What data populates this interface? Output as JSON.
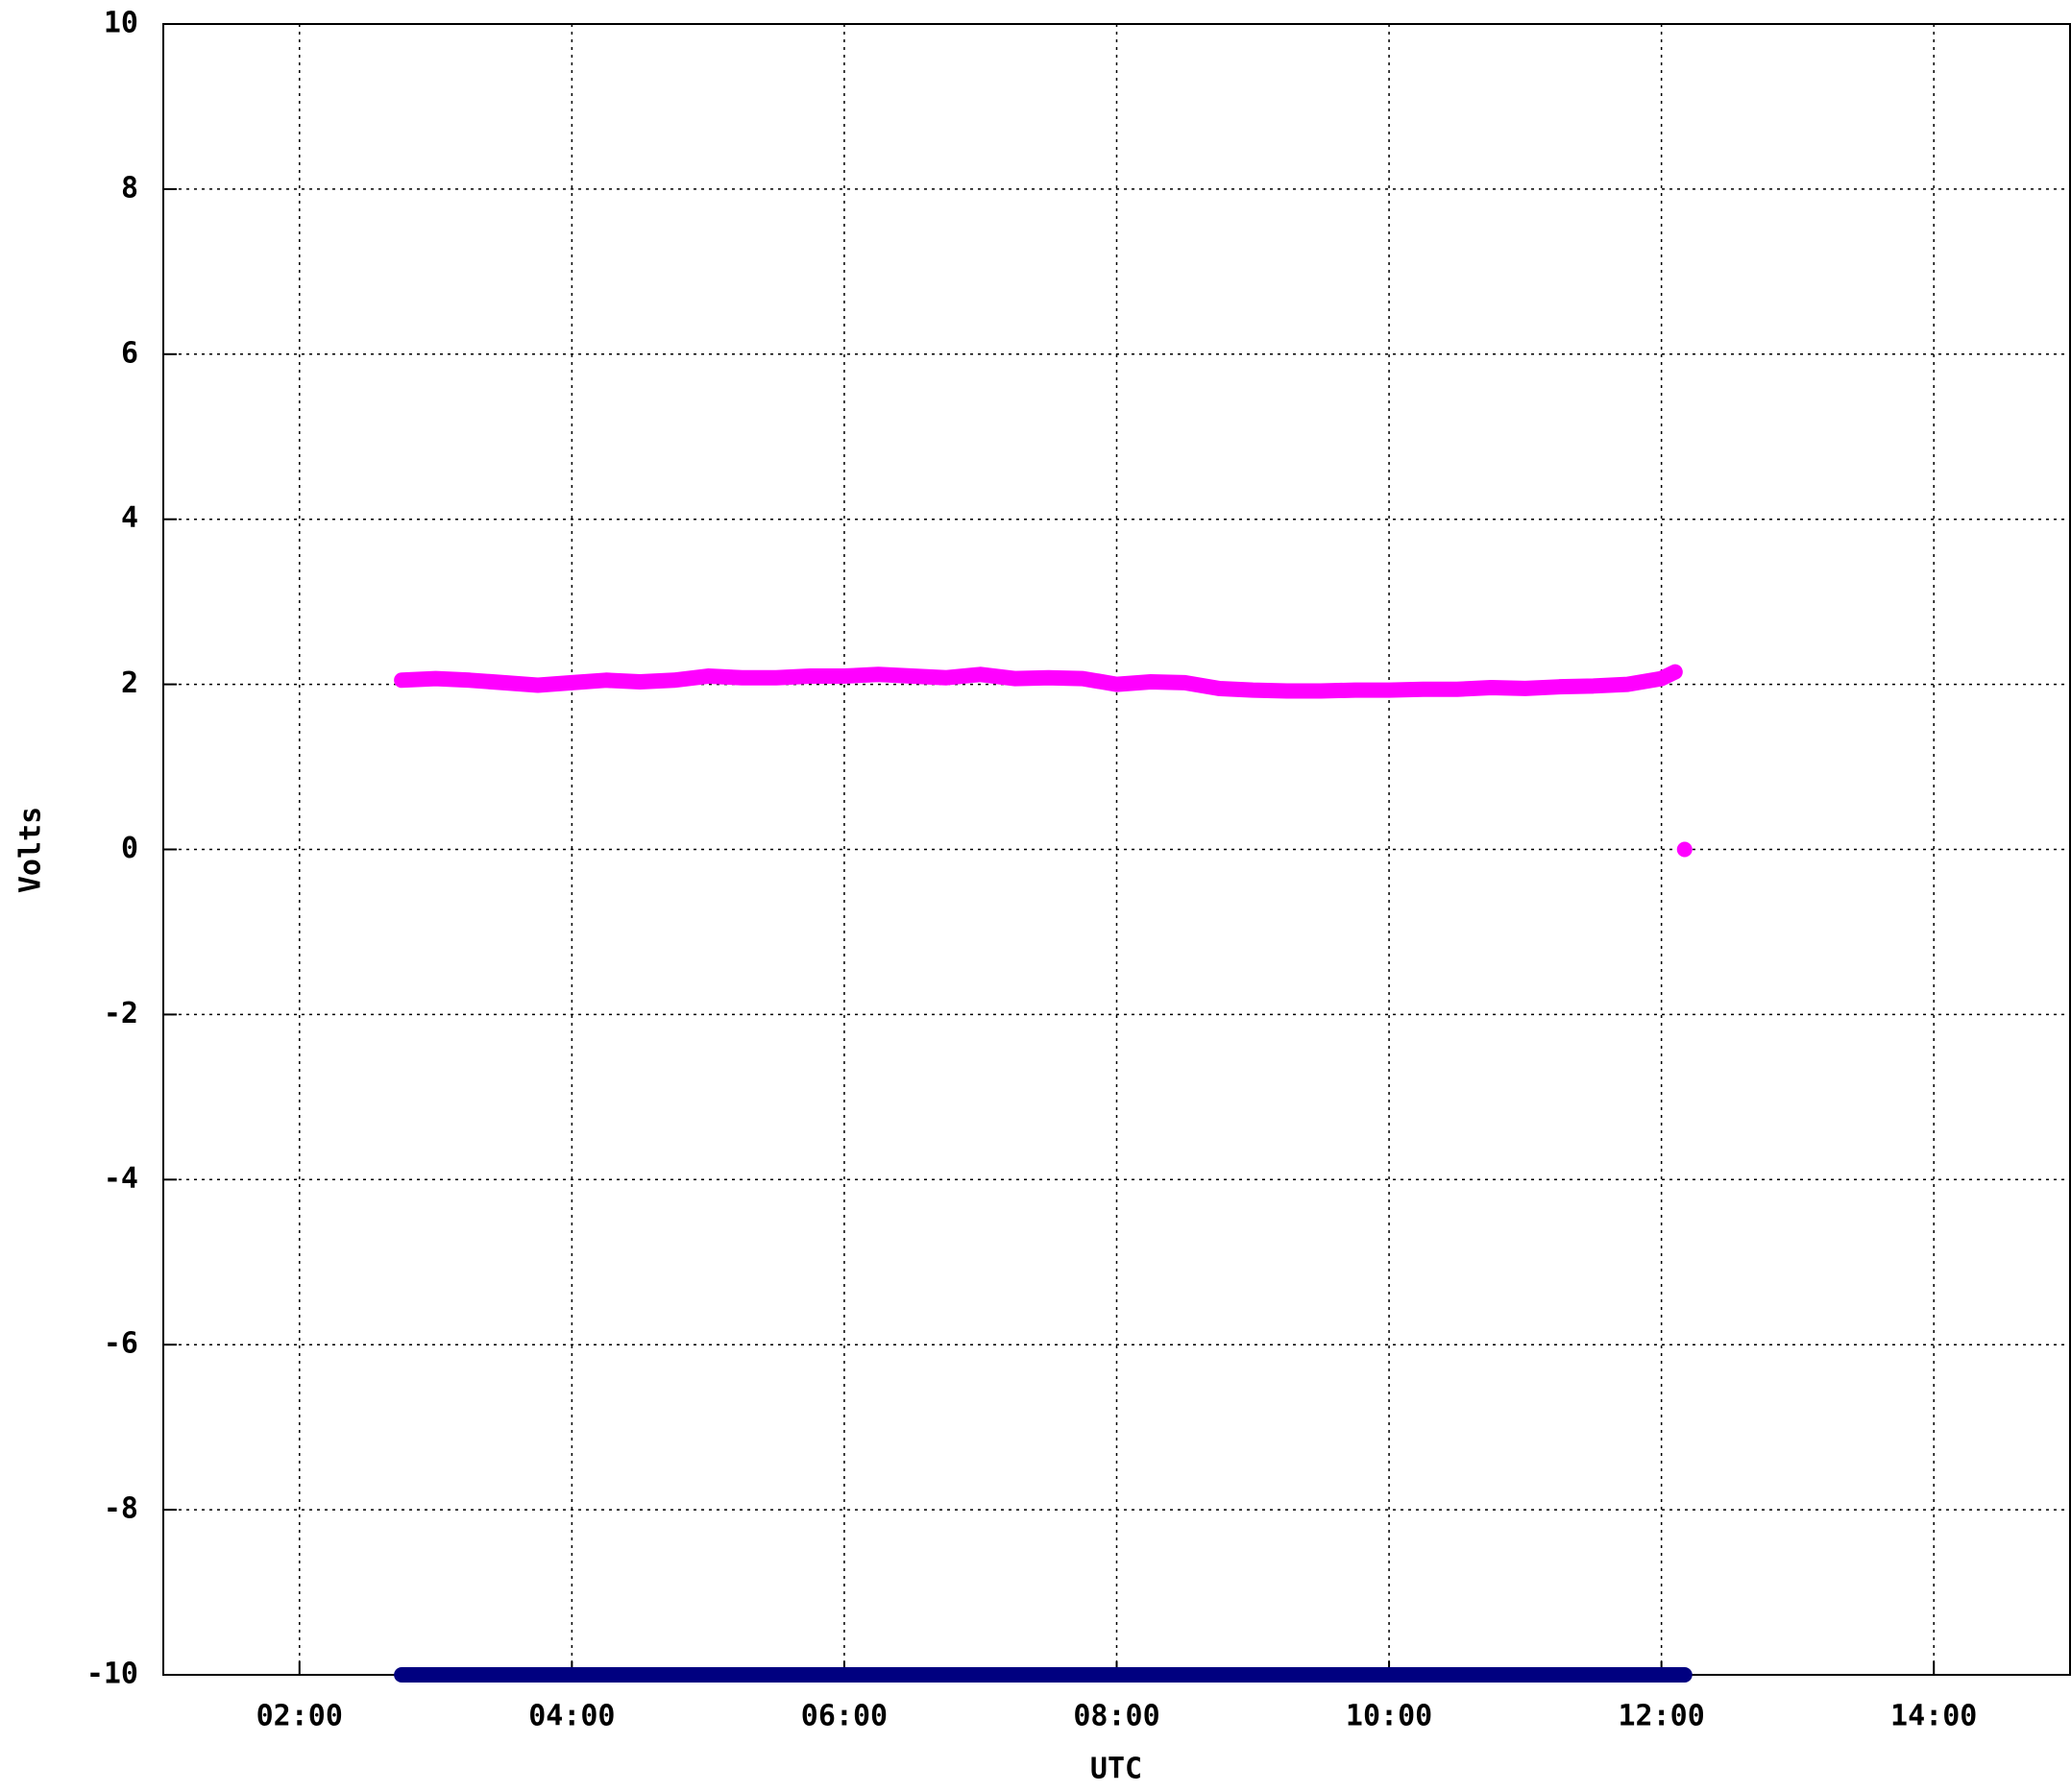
{
  "chart_data": {
    "type": "line",
    "x_label": "UTC",
    "y_label": "Volts",
    "x": [
      2.75,
      3,
      3.25,
      3.5,
      3.75,
      4,
      4.25,
      4.5,
      4.75,
      5,
      5.25,
      5.5,
      5.75,
      6,
      6.25,
      6.5,
      6.75,
      7,
      7.25,
      7.5,
      7.75,
      8,
      8.25,
      8.5,
      8.75,
      9,
      9.25,
      9.5,
      9.75,
      10,
      10.25,
      10.5,
      10.75,
      11,
      11.25,
      11.5,
      11.75,
      12,
      12.1,
      12.13,
      12.17
    ],
    "series": [
      {
        "color": "#ff00ff",
        "values": [
          2.05,
          2.07,
          2.05,
          2.02,
          1.99,
          2.02,
          2.05,
          2.03,
          2.05,
          2.1,
          2.08,
          2.08,
          2.1,
          2.1,
          2.12,
          2.1,
          2.08,
          2.12,
          2.07,
          2.08,
          2.07,
          2.0,
          2.03,
          2.02,
          1.95,
          1.93,
          1.92,
          1.92,
          1.93,
          1.93,
          1.94,
          1.94,
          1.96,
          1.95,
          1.97,
          1.98,
          2.0,
          2.07,
          2.15,
          null,
          0
        ]
      },
      {
        "color": "#000080",
        "values": [
          -10,
          -10,
          -10,
          -10,
          -10,
          -10,
          -10,
          -10,
          -10,
          -10,
          -10,
          -10,
          -10,
          -10,
          -10,
          -10,
          -10,
          -10,
          -10,
          -10,
          -10,
          -10,
          -10,
          -10,
          -10,
          -10,
          -10,
          -10,
          -10,
          -10,
          -10,
          -10,
          -10,
          -10,
          -10,
          -10,
          -10,
          -10,
          -10,
          -10,
          -10
        ]
      }
    ],
    "xlim": [
      1,
      15
    ],
    "xticks": [
      {
        "value": 2,
        "label": "02:00"
      },
      {
        "value": 4,
        "label": "04:00"
      },
      {
        "value": 6,
        "label": "06:00"
      },
      {
        "value": 8,
        "label": "08:00"
      },
      {
        "value": 10,
        "label": "10:00"
      },
      {
        "value": 12,
        "label": "12:00"
      },
      {
        "value": 14,
        "label": "14:00"
      }
    ],
    "ylim": [
      -10,
      10
    ],
    "yticks": [
      -10,
      -8,
      -6,
      -4,
      -2,
      0,
      2,
      4,
      6,
      8,
      10
    ],
    "grid": true
  }
}
